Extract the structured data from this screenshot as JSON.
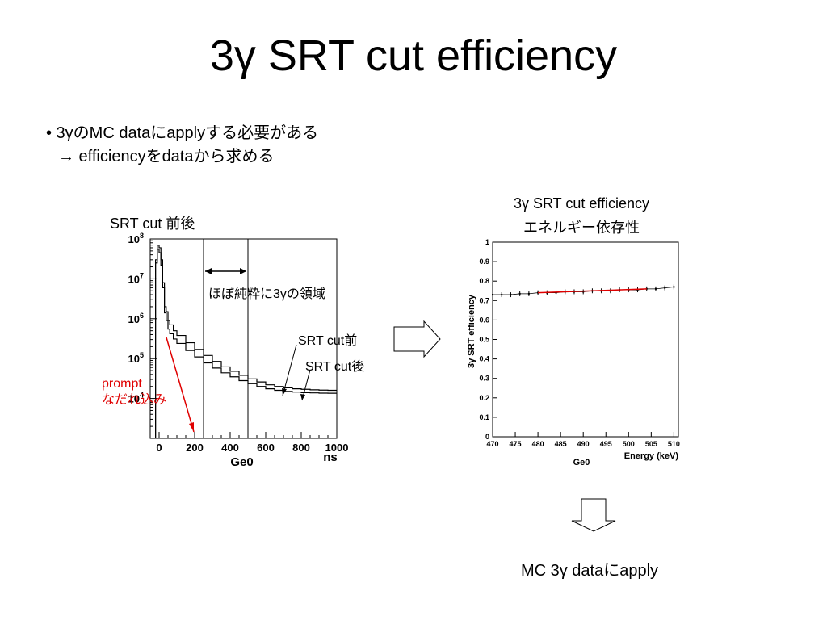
{
  "slide": {
    "title": "3γ SRT cut efficiency",
    "bullet_1": "• 3γのMC dataにapplyする必要がある",
    "bullet_2": "→ efficiencyをdataから求める",
    "left_heading": "SRT cut 前後",
    "right_heading_1": "3γ SRT cut efficiency",
    "right_heading_2": "エネルギー依存性",
    "bottom_caption": "MC 3γ dataにapply",
    "arrow_icons": [
      "right-arrow-icon",
      "down-arrow-icon"
    ]
  },
  "annotations": {
    "region": "ほぼ純粋に3γの領域",
    "before": "SRT cut前",
    "after": "SRT cut後",
    "prompt_1": "prompt",
    "prompt_2": "なだれ込み",
    "prompt_color": "#e00000"
  },
  "chart_data": [
    {
      "type": "line",
      "title": "",
      "xlabel": "Ge0",
      "x_unit_label": "ns",
      "ylabel": "",
      "y_scale": "log",
      "xlim": [
        -50,
        1000
      ],
      "ylim": [
        1000,
        100000000
      ],
      "x_ticks": [
        0,
        200,
        400,
        600,
        800,
        1000
      ],
      "y_ticks": [
        {
          "value": 10000,
          "label": "10^4"
        },
        {
          "value": 100000,
          "label": "10^5"
        },
        {
          "value": 1000000,
          "label": "10^6"
        },
        {
          "value": 10000000,
          "label": "10^7"
        },
        {
          "value": 100000000,
          "label": "10^8"
        }
      ],
      "vertical_lines": [
        250,
        500
      ],
      "series": [
        {
          "name": "SRT cut前",
          "x": [
            -20,
            -10,
            0,
            10,
            20,
            30,
            40,
            50,
            60,
            80,
            100,
            150,
            200,
            250,
            300,
            350,
            400,
            450,
            500,
            550,
            600,
            650,
            700,
            750,
            800,
            850,
            900,
            950,
            1000
          ],
          "y": [
            30000000,
            70000000,
            60000000,
            30000000,
            8000000,
            2000000,
            1500000,
            900000,
            700000,
            500000,
            380000,
            250000,
            170000,
            120000,
            85000,
            62000,
            48000,
            38000,
            31000,
            26000,
            22000,
            20000,
            18500,
            17500,
            17000,
            16500,
            16200,
            16000,
            16000
          ]
        },
        {
          "name": "SRT cut後",
          "x": [
            -20,
            -10,
            0,
            10,
            20,
            30,
            40,
            50,
            60,
            80,
            100,
            150,
            200,
            250,
            300,
            350,
            400,
            450,
            500,
            550,
            600,
            650,
            700,
            750,
            800,
            850,
            900,
            950,
            1000
          ],
          "y": [
            25000000,
            55000000,
            45000000,
            22000000,
            6000000,
            1400000,
            900000,
            550000,
            420000,
            310000,
            240000,
            160000,
            110000,
            78000,
            58000,
            44000,
            35000,
            28000,
            23500,
            20000,
            17500,
            16000,
            15000,
            14500,
            14000,
            13800,
            13600,
            13500,
            13500
          ]
        }
      ]
    },
    {
      "type": "scatter",
      "title": "",
      "xlabel": "Energy (keV)",
      "xlabel_2": "Ge0",
      "ylabel": "3γ SRT efficiency",
      "xlim": [
        470,
        511
      ],
      "ylim": [
        0,
        1
      ],
      "x_ticks": [
        470,
        475,
        480,
        485,
        490,
        495,
        500,
        505,
        510
      ],
      "y_ticks": [
        0,
        0.1,
        0.2,
        0.3,
        0.4,
        0.5,
        0.6,
        0.7,
        0.8,
        0.9,
        1
      ],
      "series": [
        {
          "name": "",
          "x": [
            470,
            472,
            474,
            476,
            478,
            480,
            482,
            484,
            486,
            488,
            490,
            492,
            494,
            496,
            498,
            500,
            502,
            504,
            506,
            508,
            510
          ],
          "y": [
            0.73,
            0.73,
            0.73,
            0.735,
            0.735,
            0.74,
            0.74,
            0.74,
            0.745,
            0.745,
            0.745,
            0.75,
            0.75,
            0.75,
            0.755,
            0.755,
            0.755,
            0.76,
            0.76,
            0.765,
            0.77
          ]
        }
      ],
      "fit": {
        "color": "#e00000",
        "x_range": [
          480,
          504
        ]
      }
    }
  ]
}
